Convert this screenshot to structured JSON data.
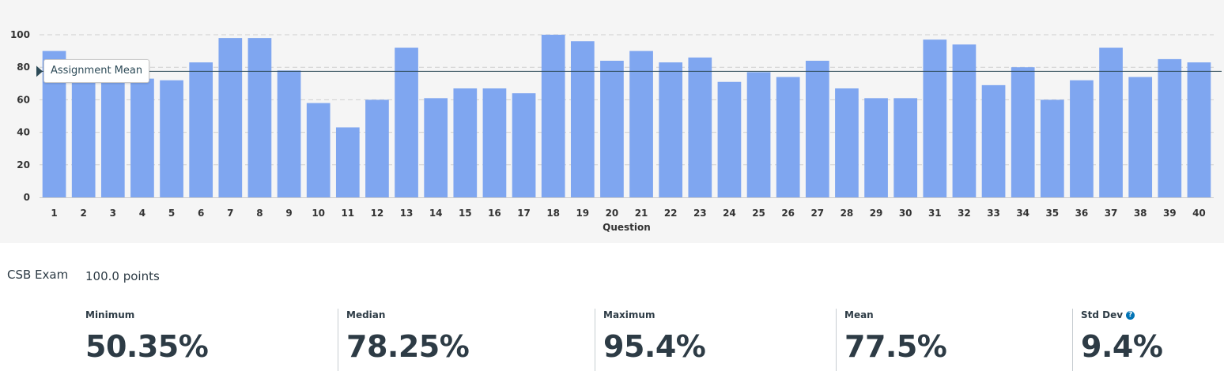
{
  "chart_data": {
    "type": "bar",
    "categories": [
      "1",
      "2",
      "3",
      "4",
      "5",
      "6",
      "7",
      "8",
      "9",
      "10",
      "11",
      "12",
      "13",
      "14",
      "15",
      "16",
      "17",
      "18",
      "19",
      "20",
      "21",
      "22",
      "23",
      "24",
      "25",
      "26",
      "27",
      "28",
      "29",
      "30",
      "31",
      "32",
      "33",
      "34",
      "35",
      "36",
      "37",
      "38",
      "39",
      "40"
    ],
    "values": [
      90,
      72,
      73,
      73,
      72,
      83,
      98,
      98,
      78,
      58,
      43,
      60,
      92,
      61,
      67,
      67,
      64,
      100,
      96,
      84,
      90,
      83,
      86,
      71,
      77,
      74,
      84,
      67,
      61,
      61,
      97,
      94,
      69,
      80,
      60,
      72,
      92,
      74,
      85,
      83
    ],
    "xlabel": "Question",
    "ylabel": "",
    "ylim": [
      0,
      100
    ],
    "yticks": [
      0,
      20,
      40,
      60,
      80,
      100
    ],
    "grid": true,
    "reference_line": {
      "label": "Assignment Mean",
      "value": 77.5
    },
    "colors": {
      "bar": "#7fa6f0",
      "grid": "#d0d0d0",
      "mean_line": "#2c4a57",
      "marker": "#2c4a57"
    }
  },
  "summary": {
    "assignment_name": "CSB Exam",
    "points": "100.0 points"
  },
  "stats": [
    {
      "label": "Minimum",
      "value": "50.35%"
    },
    {
      "label": "Median",
      "value": "78.25%"
    },
    {
      "label": "Maximum",
      "value": "95.4%"
    },
    {
      "label": "Mean",
      "value": "77.5%"
    },
    {
      "label": "Std Dev",
      "value": "9.4%",
      "icon": "help-icon"
    }
  ]
}
